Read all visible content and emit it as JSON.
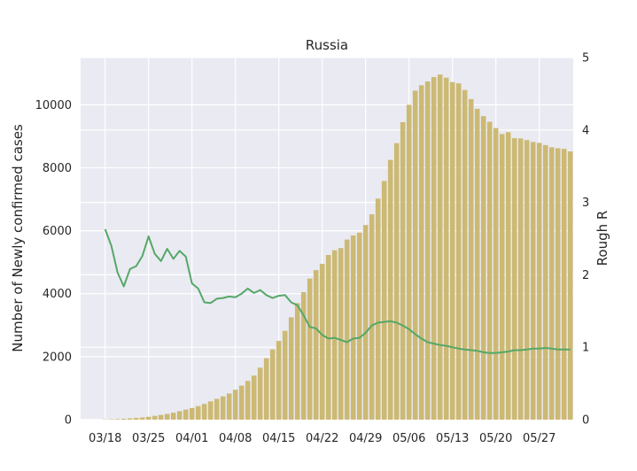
{
  "chart_data": {
    "type": "bar",
    "title": "Russia",
    "xlabel": "",
    "ylabel": "Number of Newly confirmed cases",
    "y2label": "Rough R",
    "ylim": [
      0,
      11500
    ],
    "y2lim": [
      0,
      5
    ],
    "yticks": [
      0,
      2000,
      4000,
      6000,
      8000,
      10000
    ],
    "y2ticks": [
      0,
      1,
      2,
      3,
      4,
      5
    ],
    "xtick_labels": [
      "03/18",
      "03/25",
      "04/01",
      "04/08",
      "04/15",
      "04/22",
      "04/29",
      "05/06",
      "05/13",
      "05/20",
      "05/27"
    ],
    "xtick_indices": [
      0,
      7,
      14,
      21,
      28,
      35,
      42,
      49,
      56,
      63,
      70
    ],
    "grid": true,
    "background": "#eaeaf2",
    "colors": {
      "bars": "#ccb974",
      "line": "#55a868"
    },
    "series": [
      {
        "name": "",
        "kind": "bar",
        "axis": "left",
        "values": [
          10,
          15,
          20,
          30,
          40,
          55,
          70,
          90,
          120,
          150,
          180,
          220,
          270,
          320,
          370,
          430,
          500,
          580,
          660,
          740,
          830,
          950,
          1080,
          1230,
          1400,
          1650,
          1950,
          2230,
          2500,
          2820,
          3250,
          3700,
          4050,
          4480,
          4750,
          4950,
          5230,
          5380,
          5450,
          5720,
          5850,
          5940,
          6180,
          6520,
          7020,
          7580,
          8250,
          8780,
          9450,
          10000,
          10450,
          10620,
          10740,
          10880,
          10960,
          10860,
          10720,
          10680,
          10470,
          10180,
          9870,
          9640,
          9460,
          9260,
          9070,
          9130,
          8940,
          8930,
          8880,
          8820,
          8790,
          8720,
          8650,
          8620,
          8600,
          8520
        ]
      },
      {
        "name": "",
        "kind": "line",
        "axis": "right",
        "values": [
          2.63,
          2.4,
          2.03,
          1.84,
          2.08,
          2.12,
          2.26,
          2.53,
          2.29,
          2.19,
          2.36,
          2.22,
          2.33,
          2.25,
          1.88,
          1.81,
          1.62,
          1.61,
          1.67,
          1.68,
          1.7,
          1.69,
          1.74,
          1.81,
          1.75,
          1.79,
          1.72,
          1.68,
          1.71,
          1.72,
          1.62,
          1.58,
          1.44,
          1.28,
          1.26,
          1.17,
          1.12,
          1.13,
          1.1,
          1.07,
          1.12,
          1.13,
          1.2,
          1.3,
          1.34,
          1.35,
          1.36,
          1.34,
          1.3,
          1.25,
          1.18,
          1.12,
          1.07,
          1.05,
          1.03,
          1.02,
          1.0,
          0.98,
          0.97,
          0.96,
          0.95,
          0.93,
          0.92,
          0.92,
          0.93,
          0.94,
          0.96,
          0.96,
          0.97,
          0.98,
          0.98,
          0.99,
          0.98,
          0.97,
          0.97,
          0.97
        ]
      }
    ]
  }
}
